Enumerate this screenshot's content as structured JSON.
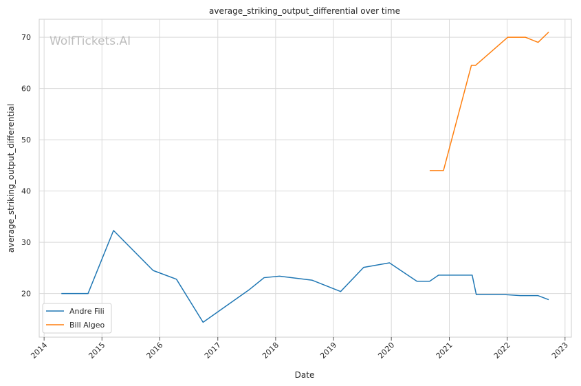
{
  "chart_data": {
    "type": "line",
    "title": "average_striking_output_differential over time",
    "xlabel": "Date",
    "ylabel": "average_striking_output_differential",
    "watermark": "WolfTickets.AI",
    "xlim": [
      "2013-12-01",
      "2023-02-10"
    ],
    "ylim": [
      11.5,
      73.5
    ],
    "x_ticks": [
      "2014",
      "2015",
      "2016",
      "2017",
      "2018",
      "2019",
      "2020",
      "2021",
      "2022",
      "2023"
    ],
    "y_ticks": [
      20,
      30,
      40,
      50,
      60,
      70
    ],
    "grid": true,
    "legend_position": "lower-left",
    "series": [
      {
        "name": "Andre Fili",
        "color": "#1f77b4",
        "points": [
          [
            "2014-04-20",
            20.0
          ],
          [
            "2014-10-05",
            20.0
          ],
          [
            "2015-03-15",
            32.3
          ],
          [
            "2015-11-20",
            24.5
          ],
          [
            "2016-04-15",
            22.8
          ],
          [
            "2016-09-30",
            14.4
          ],
          [
            "2017-07-20",
            20.8
          ],
          [
            "2017-10-20",
            23.1
          ],
          [
            "2018-01-25",
            23.4
          ],
          [
            "2018-08-20",
            22.6
          ],
          [
            "2019-02-15",
            20.4
          ],
          [
            "2019-07-10",
            25.1
          ],
          [
            "2019-12-20",
            26.0
          ],
          [
            "2020-06-10",
            22.4
          ],
          [
            "2020-08-30",
            22.4
          ],
          [
            "2020-10-25",
            23.6
          ],
          [
            "2021-05-25",
            23.6
          ],
          [
            "2021-06-20",
            19.8
          ],
          [
            "2021-12-15",
            19.8
          ],
          [
            "2022-03-25",
            19.6
          ],
          [
            "2022-07-15",
            19.6
          ],
          [
            "2022-09-20",
            18.8
          ]
        ]
      },
      {
        "name": "Bill Algeo",
        "color": "#ff7f0e",
        "points": [
          [
            "2020-08-30",
            44.0
          ],
          [
            "2020-11-25",
            44.0
          ],
          [
            "2021-05-20",
            64.5
          ],
          [
            "2021-06-15",
            64.5
          ],
          [
            "2022-01-05",
            70.0
          ],
          [
            "2022-04-25",
            70.0
          ],
          [
            "2022-07-15",
            69.0
          ],
          [
            "2022-09-20",
            71.0
          ]
        ]
      }
    ]
  }
}
